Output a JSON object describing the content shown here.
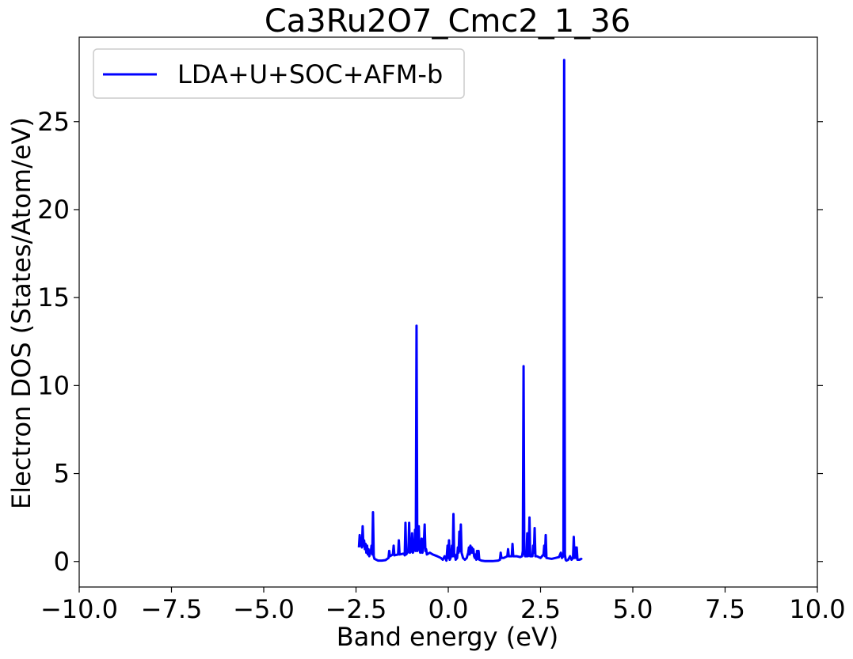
{
  "chart_data": {
    "type": "line",
    "title": "Ca3Ru2O7_Cmc2_1_36",
    "xlabel": "Band energy (eV)",
    "ylabel": "Electron DOS (States/Atom/eV)",
    "xlim": [
      -10,
      10
    ],
    "ylim": [
      -1.45,
      29.8
    ],
    "xticks": [
      -10,
      -7.5,
      -5,
      -2.5,
      0,
      2.5,
      5,
      7.5,
      10
    ],
    "xtick_labels": [
      "−10.0",
      "−7.5",
      "−5.0",
      "−2.5",
      "0.0",
      "2.5",
      "5.0",
      "7.5",
      "10.0"
    ],
    "yticks": [
      0,
      5,
      10,
      15,
      20,
      25
    ],
    "ytick_labels": [
      "0",
      "5",
      "10",
      "15",
      "20",
      "25"
    ],
    "grid": false,
    "legend_position": "top-left",
    "series": [
      {
        "name": "LDA+U+SOC+AFM-b",
        "color": "#0000ff",
        "points": [
          [
            -2.42,
            0.8
          ],
          [
            -2.4,
            1.5
          ],
          [
            -2.38,
            0.9
          ],
          [
            -2.36,
            1.3
          ],
          [
            -2.34,
            0.8
          ],
          [
            -2.32,
            2.0
          ],
          [
            -2.3,
            0.9
          ],
          [
            -2.28,
            1.2
          ],
          [
            -2.26,
            0.7
          ],
          [
            -2.24,
            1.0
          ],
          [
            -2.22,
            0.5
          ],
          [
            -2.2,
            0.9
          ],
          [
            -2.18,
            0.4
          ],
          [
            -2.16,
            0.7
          ],
          [
            -2.14,
            0.3
          ],
          [
            -2.12,
            0.6
          ],
          [
            -2.1,
            0.5
          ],
          [
            -2.08,
            0.9
          ],
          [
            -2.06,
            0.4
          ],
          [
            -2.04,
            2.8
          ],
          [
            -2.02,
            0.3
          ],
          [
            -2.0,
            0.15
          ],
          [
            -1.9,
            0.05
          ],
          [
            -1.8,
            0.05
          ],
          [
            -1.7,
            0.08
          ],
          [
            -1.62,
            0.2
          ],
          [
            -1.6,
            0.6
          ],
          [
            -1.58,
            0.3
          ],
          [
            -1.5,
            0.4
          ],
          [
            -1.48,
            0.9
          ],
          [
            -1.46,
            0.35
          ],
          [
            -1.36,
            0.4
          ],
          [
            -1.34,
            1.2
          ],
          [
            -1.32,
            0.4
          ],
          [
            -1.2,
            0.45
          ],
          [
            -1.18,
            0.35
          ],
          [
            -1.16,
            2.2
          ],
          [
            -1.14,
            0.4
          ],
          [
            -1.08,
            0.6
          ],
          [
            -1.06,
            2.2
          ],
          [
            -1.04,
            0.5
          ],
          [
            -1.0,
            0.6
          ],
          [
            -0.98,
            1.6
          ],
          [
            -0.96,
            0.5
          ],
          [
            -0.92,
            0.7
          ],
          [
            -0.9,
            1.8
          ],
          [
            -0.88,
            0.6
          ],
          [
            -0.86,
            13.4
          ],
          [
            -0.84,
            0.6
          ],
          [
            -0.82,
            1.0
          ],
          [
            -0.8,
            2.0
          ],
          [
            -0.78,
            0.7
          ],
          [
            -0.76,
            0.5
          ],
          [
            -0.74,
            0.6
          ],
          [
            -0.72,
            1.3
          ],
          [
            -0.7,
            0.5
          ],
          [
            -0.68,
            0.9
          ],
          [
            -0.66,
            1.1
          ],
          [
            -0.64,
            2.1
          ],
          [
            -0.62,
            0.6
          ],
          [
            -0.6,
            0.7
          ],
          [
            -0.58,
            0.4
          ],
          [
            -0.5,
            0.5
          ],
          [
            -0.42,
            0.4
          ],
          [
            -0.3,
            0.3
          ],
          [
            -0.2,
            0.2
          ],
          [
            -0.15,
            0.1
          ],
          [
            -0.1,
            0.3
          ],
          [
            -0.05,
            0.05
          ],
          [
            -0.02,
            0.9
          ],
          [
            0.0,
            0.2
          ],
          [
            0.02,
            1.2
          ],
          [
            0.04,
            0.1
          ],
          [
            0.08,
            0.3
          ],
          [
            0.1,
            0.9
          ],
          [
            0.12,
            0.3
          ],
          [
            0.14,
            2.7
          ],
          [
            0.16,
            0.3
          ],
          [
            0.18,
            0.4
          ],
          [
            0.2,
            0.1
          ],
          [
            0.24,
            0.2
          ],
          [
            0.26,
            0.8
          ],
          [
            0.28,
            0.5
          ],
          [
            0.3,
            1.7
          ],
          [
            0.32,
            0.6
          ],
          [
            0.34,
            2.1
          ],
          [
            0.36,
            0.5
          ],
          [
            0.4,
            0.2
          ],
          [
            0.45,
            0.1
          ],
          [
            0.5,
            0.2
          ],
          [
            0.54,
            0.5
          ],
          [
            0.56,
            0.8
          ],
          [
            0.58,
            0.4
          ],
          [
            0.6,
            0.9
          ],
          [
            0.62,
            0.5
          ],
          [
            0.64,
            0.8
          ],
          [
            0.66,
            0.5
          ],
          [
            0.68,
            0.7
          ],
          [
            0.7,
            0.3
          ],
          [
            0.72,
            0.2
          ],
          [
            0.74,
            0.4
          ],
          [
            0.76,
            0.1
          ],
          [
            0.78,
            0.6
          ],
          [
            0.8,
            0.15
          ],
          [
            0.82,
            0.6
          ],
          [
            0.84,
            0.1
          ],
          [
            0.9,
            0.05
          ],
          [
            1.0,
            0.02
          ],
          [
            1.2,
            0.02
          ],
          [
            1.35,
            0.05
          ],
          [
            1.4,
            0.1
          ],
          [
            1.42,
            0.5
          ],
          [
            1.44,
            0.2
          ],
          [
            1.5,
            0.2
          ],
          [
            1.6,
            0.3
          ],
          [
            1.62,
            0.7
          ],
          [
            1.64,
            0.3
          ],
          [
            1.72,
            0.3
          ],
          [
            1.74,
            1.0
          ],
          [
            1.76,
            0.3
          ],
          [
            1.85,
            0.3
          ],
          [
            1.95,
            0.25
          ],
          [
            2.0,
            0.3
          ],
          [
            2.02,
            0.6
          ],
          [
            2.04,
            11.1
          ],
          [
            2.06,
            0.5
          ],
          [
            2.08,
            0.3
          ],
          [
            2.12,
            0.3
          ],
          [
            2.14,
            1.6
          ],
          [
            2.16,
            0.3
          ],
          [
            2.18,
            0.4
          ],
          [
            2.2,
            2.5
          ],
          [
            2.22,
            0.3
          ],
          [
            2.28,
            0.3
          ],
          [
            2.3,
            0.9
          ],
          [
            2.32,
            0.5
          ],
          [
            2.34,
            1.9
          ],
          [
            2.36,
            0.3
          ],
          [
            2.4,
            0.3
          ],
          [
            2.5,
            0.2
          ],
          [
            2.58,
            0.4
          ],
          [
            2.6,
            0.9
          ],
          [
            2.62,
            0.3
          ],
          [
            2.64,
            1.5
          ],
          [
            2.66,
            0.2
          ],
          [
            2.8,
            0.15
          ],
          [
            2.9,
            0.2
          ],
          [
            3.0,
            0.25
          ],
          [
            3.05,
            0.5
          ],
          [
            3.08,
            0.2
          ],
          [
            3.12,
            0.3
          ],
          [
            3.14,
            28.5
          ],
          [
            3.16,
            0.4
          ],
          [
            3.18,
            0.1
          ],
          [
            3.2,
            0.05
          ],
          [
            3.25,
            0.1
          ],
          [
            3.3,
            0.3
          ],
          [
            3.34,
            0.1
          ],
          [
            3.38,
            0.2
          ],
          [
            3.4,
            1.4
          ],
          [
            3.42,
            0.2
          ],
          [
            3.44,
            0.8
          ],
          [
            3.46,
            0.2
          ],
          [
            3.48,
            0.8
          ],
          [
            3.5,
            0.1
          ],
          [
            3.55,
            0.1
          ],
          [
            3.6,
            0.15
          ],
          [
            3.62,
            0.1
          ]
        ]
      }
    ]
  }
}
